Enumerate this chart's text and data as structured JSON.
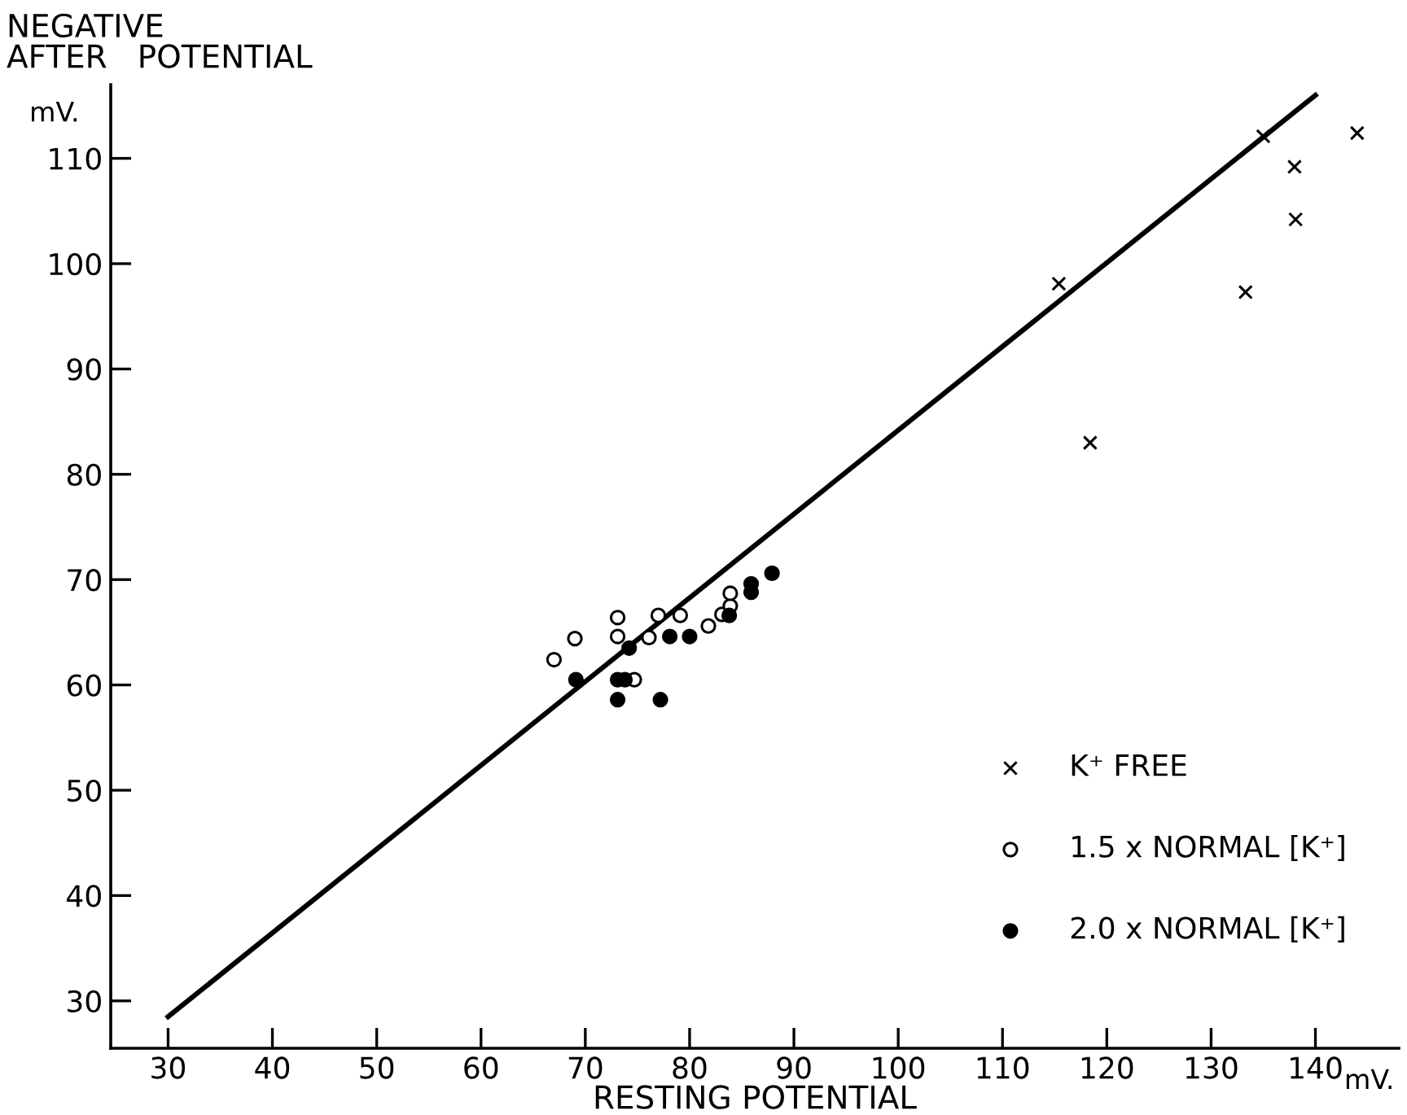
{
  "chart_data": {
    "type": "scatter",
    "xlabel": "RESTING POTENTIAL",
    "ylabel": "NEGATIVE\nAFTER   POTENTIAL",
    "annotations": [
      "mV.",
      "mV."
    ],
    "xlim": [
      24.5,
      148
    ],
    "ylim": [
      25.5,
      117
    ],
    "xticks": [
      30,
      40,
      50,
      60,
      70,
      80,
      90,
      100,
      110,
      120,
      130,
      140
    ],
    "yticks": [
      30,
      40,
      50,
      60,
      70,
      80,
      90,
      100,
      110
    ],
    "grid": false,
    "legend": "bottom right",
    "series": [
      {
        "name": "K⁺ FREE",
        "color": "#000000",
        "marker": "cross",
        "x": [
          115.4,
          118.4,
          133.3,
          138.1,
          138.0,
          135.0,
          144.0
        ],
        "values": [
          98.1,
          83.0,
          97.3,
          104.2,
          109.2,
          112.1,
          112.4
        ]
      },
      {
        "name": "1.5 x NORMAL [K⁺]",
        "color": "#ffffff",
        "marker": "circle",
        "x": [
          67.0,
          69.0,
          73.1,
          73.1,
          74.7,
          76.1,
          77.0,
          79.1,
          81.8,
          83.1,
          83.9,
          83.9
        ],
        "values": [
          62.4,
          64.4,
          66.4,
          64.6,
          60.5,
          64.5,
          66.6,
          66.6,
          65.6,
          66.7,
          67.5,
          68.7
        ]
      },
      {
        "name": "2.0 x NORMAL [K⁺]",
        "color": "#000000",
        "marker": "circle",
        "x": [
          69.1,
          73.1,
          73.8,
          73.1,
          77.2,
          74.2,
          78.1,
          80.0,
          83.8,
          85.9,
          85.9,
          87.9
        ],
        "values": [
          60.5,
          60.5,
          60.5,
          58.6,
          58.6,
          63.5,
          64.6,
          64.6,
          66.6,
          68.8,
          69.6,
          70.6
        ]
      },
      {
        "type": "line",
        "color": "#000000",
        "x": [
          30,
          140
        ],
        "values": [
          28.5,
          116
        ]
      }
    ]
  }
}
